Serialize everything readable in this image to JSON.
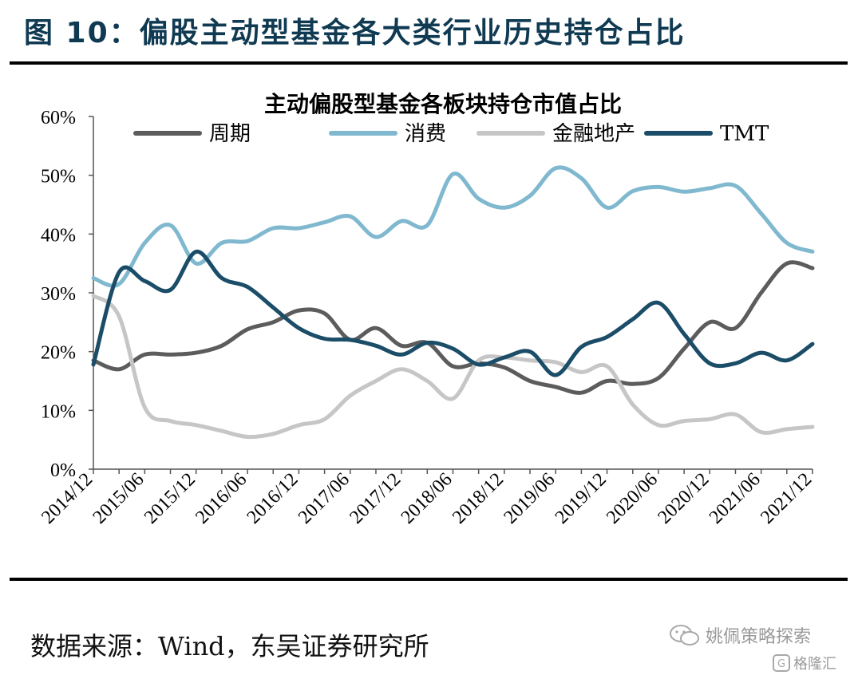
{
  "figure_title": "图 10：偏股主动型基金各大类行业历史持仓占比",
  "source_note": "数据来源：Wind，东吴证券研究所",
  "watermark": {
    "account": "姚佩策略探索",
    "platform": "格隆汇"
  },
  "colors": {
    "title": "#0f3a52",
    "周期": "#5c5c5c",
    "消费": "#7fb8cf",
    "金融地产": "#c6c6c6",
    "TMT": "#1b4d68"
  },
  "chart_data": {
    "type": "line",
    "title": "主动偏股型基金各板块持仓市值占比",
    "legend_position": "top",
    "ylim": [
      0,
      60
    ],
    "y_tick_labels": [
      "0%",
      "10%",
      "20%",
      "30%",
      "40%",
      "50%",
      "60%"
    ],
    "x_tick_labels": [
      "2014/12",
      "2015/06",
      "2015/12",
      "2016/06",
      "2016/12",
      "2017/06",
      "2017/12",
      "2018/06",
      "2018/12",
      "2019/06",
      "2019/12",
      "2020/06",
      "2020/12",
      "2021/06",
      "2021/12"
    ],
    "x": [
      "2014/12",
      "2015/03",
      "2015/06",
      "2015/09",
      "2015/12",
      "2016/03",
      "2016/06",
      "2016/09",
      "2016/12",
      "2017/03",
      "2017/06",
      "2017/09",
      "2017/12",
      "2018/03",
      "2018/06",
      "2018/09",
      "2018/12",
      "2019/03",
      "2019/06",
      "2019/09",
      "2019/12",
      "2020/03",
      "2020/06",
      "2020/09",
      "2020/12",
      "2021/03",
      "2021/06",
      "2021/09",
      "2021/12"
    ],
    "series": [
      {
        "name": "周期",
        "values": [
          18.5,
          17.0,
          19.5,
          19.5,
          19.8,
          21.0,
          23.8,
          25.0,
          27.0,
          26.5,
          22.0,
          24.0,
          21.0,
          21.5,
          17.5,
          18.0,
          17.3,
          15.0,
          14.0,
          13.0,
          15.0,
          14.5,
          15.5,
          20.5,
          25.0,
          24.0,
          30.0,
          35.0,
          34.2
        ]
      },
      {
        "name": "消费",
        "values": [
          32.5,
          31.5,
          38.5,
          41.5,
          35.0,
          38.5,
          38.8,
          41.0,
          41.0,
          42.0,
          43.0,
          39.5,
          42.2,
          41.5,
          50.2,
          46.0,
          44.5,
          46.5,
          51.2,
          49.5,
          44.5,
          47.3,
          48.0,
          47.2,
          47.8,
          48.2,
          43.5,
          38.5,
          37.0
        ]
      },
      {
        "name": "金融地产",
        "values": [
          29.5,
          26.0,
          10.5,
          8.2,
          7.5,
          6.5,
          5.5,
          6.0,
          7.5,
          8.5,
          12.5,
          15.0,
          17.0,
          15.0,
          12.0,
          18.5,
          19.0,
          18.5,
          18.2,
          16.5,
          17.5,
          11.0,
          7.5,
          8.2,
          8.5,
          9.3,
          6.3,
          6.8,
          7.2
        ]
      },
      {
        "name": "TMT",
        "values": [
          17.8,
          33.5,
          32.0,
          30.5,
          37.0,
          32.5,
          31.0,
          27.5,
          24.0,
          22.2,
          22.0,
          21.0,
          19.5,
          21.5,
          20.5,
          17.8,
          19.0,
          20.0,
          16.0,
          20.8,
          22.5,
          25.5,
          28.3,
          23.0,
          18.0,
          18.0,
          19.8,
          18.5,
          21.3
        ]
      }
    ]
  }
}
